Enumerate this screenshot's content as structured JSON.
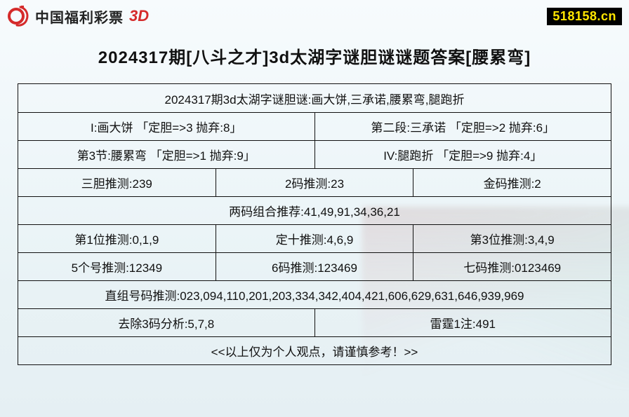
{
  "brand": {
    "text": "中国福利彩票",
    "suffix": "3D",
    "logo_color": "#d52b2b"
  },
  "watermark": "518158.cn",
  "title": "2024317期[八斗之才]3d太湖字谜胆谜谜题答案[腰累弯]",
  "rows": [
    {
      "cells": [
        "2024317期3d太湖字谜胆谜:画大饼,三承诺,腰累弯,腿跑折"
      ]
    },
    {
      "cells": [
        "I:画大饼 「定胆=>3 抛弃:8」",
        "第二段:三承诺 「定胆=>2 抛弃:6」"
      ]
    },
    {
      "cells": [
        "第3节:腰累弯 「定胆=>1 抛弃:9」",
        "IV:腿跑折 「定胆=>9 抛弃:4」"
      ]
    },
    {
      "cells": [
        "三胆推测:239",
        "2码推测:23",
        "金码推测:2"
      ]
    },
    {
      "cells": [
        "两码组合推荐:41,49,91,34,36,21"
      ]
    },
    {
      "cells": [
        "第1位推测:0,1,9",
        "定十推测:4,6,9",
        "第3位推测:3,4,9"
      ]
    },
    {
      "cells": [
        "5个号推测:12349",
        "6码推测:123469",
        "七码推测:0123469"
      ]
    },
    {
      "cells": [
        "直组号码推测:023,094,110,201,203,334,342,404,421,606,629,631,646,939,969"
      ]
    },
    {
      "cells": [
        "去除3码分析:5,7,8",
        "雷霆1注:491"
      ]
    },
    {
      "cells": [
        "<<以上仅为个人观点，请谨慎参考！>>"
      ]
    }
  ],
  "colors": {
    "border": "#111111",
    "text": "#111111",
    "watermark_bg": "#000000",
    "watermark_fg": "#ffe600",
    "brand_red": "#d52b2b",
    "bg_top": "#f7fbfd",
    "bg_bottom": "#e5eff3"
  }
}
